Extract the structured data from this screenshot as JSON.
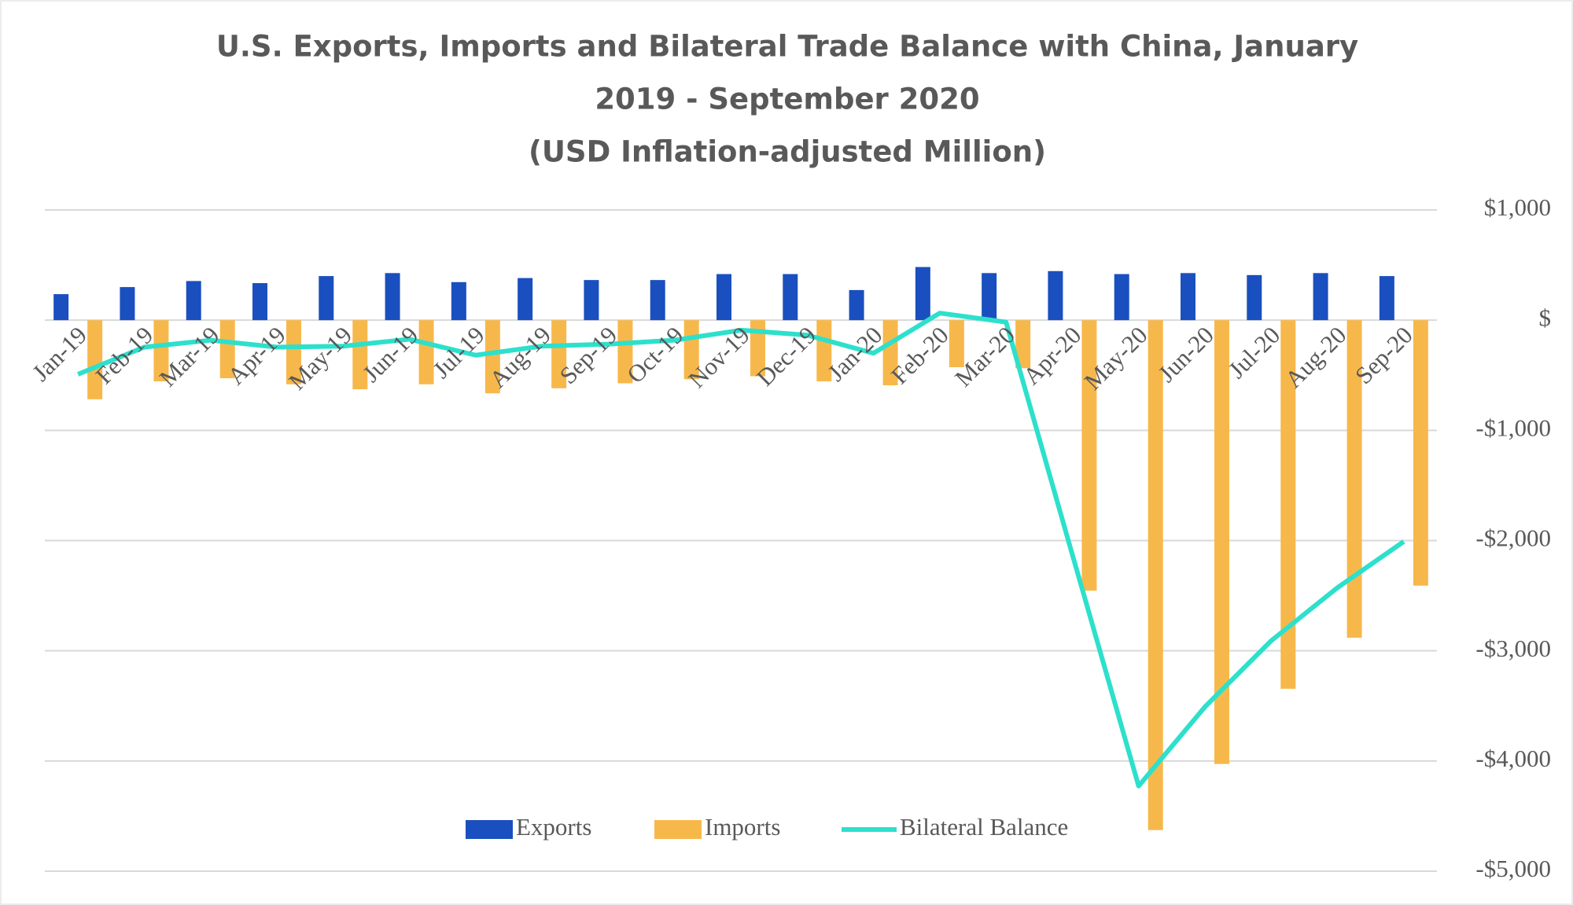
{
  "chart_data": {
    "type": "bar_line",
    "title": [
      "U.S. Exports, Imports and Bilateral Trade Balance with China, January",
      "2019 - September 2020",
      "(USD Inflation-adjusted Million)"
    ],
    "categories": [
      "Jan-19",
      "Feb-19",
      "Mar-19",
      "Apr-19",
      "May-19",
      "Jun-19",
      "Jul-19",
      "Aug-19",
      "Sep-19",
      "Oct-19",
      "Nov-19",
      "Dec-19",
      "Jan-20",
      "Feb-20",
      "Mar-20",
      "Apr-20",
      "May-20",
      "Jun-20",
      "Jul-20",
      "Aug-20",
      "Sep-20"
    ],
    "series": [
      {
        "name": "Exports",
        "type": "bar",
        "color": "#1a4fbf",
        "values": [
          236,
          300,
          355,
          336,
          400,
          427,
          345,
          382,
          364,
          364,
          418,
          418,
          273,
          482,
          427,
          445,
          418,
          427,
          409,
          427,
          400
        ]
      },
      {
        "name": "Imports",
        "type": "bar",
        "color": "#f7b84b",
        "values": [
          -718,
          -555,
          -527,
          -582,
          -627,
          -582,
          -664,
          -618,
          -573,
          -536,
          -509,
          -555,
          -591,
          -427,
          -436,
          -2455,
          -4627,
          -4027,
          -3345,
          -2882,
          -2409
        ]
      },
      {
        "name": "Bilateral Balance",
        "type": "line",
        "color": "#2de0cc",
        "values": [
          -491,
          -245,
          -182,
          -245,
          -236,
          -173,
          -318,
          -236,
          -218,
          -182,
          -91,
          -136,
          -300,
          64,
          -18,
          -2127,
          -4227,
          -3509,
          -2909,
          -2427,
          -2009
        ]
      }
    ],
    "ylim": [
      -5000,
      1000
    ],
    "yticks": [
      {
        "value": 1000,
        "label": "$1,000"
      },
      {
        "value": 0,
        "label": "$"
      },
      {
        "value": -1000,
        "label": "-$1,000"
      },
      {
        "value": -2000,
        "label": "-$2,000"
      },
      {
        "value": -3000,
        "label": "-$3,000"
      },
      {
        "value": -4000,
        "label": "-$4,000"
      },
      {
        "value": -5000,
        "label": "-$5,000"
      }
    ],
    "grid": true,
    "legend": "bottom"
  }
}
